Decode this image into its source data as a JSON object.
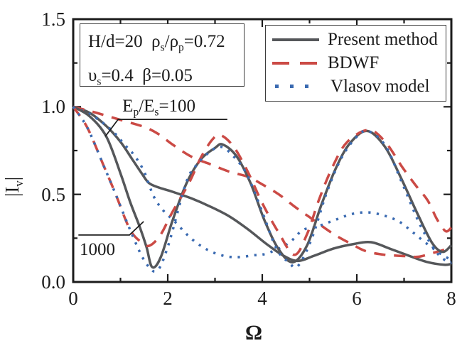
{
  "figure": {
    "background": "#ffffff",
    "axis_color": "#1b1b1b",
    "accent_gray": "#55575a",
    "accent_red": "#cb4a45",
    "accent_blue": "#3a6ab1"
  },
  "axes": {
    "xlabel": "Ω",
    "ylabel": "|I_{v}|",
    "xlim": [
      0,
      8
    ],
    "ylim": [
      0,
      1.5
    ],
    "x_major_ticks": [
      0,
      2,
      4,
      6,
      8
    ],
    "x_minor_ticks": [
      1,
      3,
      5,
      7
    ],
    "y_major_ticks": [
      0,
      0.5,
      1.0,
      1.5
    ],
    "y_minor_ticks": [
      0.25,
      0.75,
      1.25
    ],
    "x_tick_labels": [
      "0",
      "2",
      "4",
      "6",
      "8"
    ],
    "y_tick_labels": [
      "0.0",
      "0.5",
      "1.0",
      "1.5"
    ],
    "grid": "off",
    "ticks": "inward-all-sides"
  },
  "annotation_box": {
    "line1": "H/d=20  ρ_{s}/ρ_{p}=0.72",
    "line2": "υ_{s}=0.4  β=0.05"
  },
  "legend": {
    "position": "upper-right",
    "entries": [
      {
        "label": "Present method",
        "style": "solid",
        "color": "#55575a"
      },
      {
        "label": "BDWF",
        "style": "dashed",
        "color": "#cb4a45"
      },
      {
        "label": "Vlasov model",
        "style": "dotted",
        "color": "#3a6ab1"
      }
    ]
  },
  "curve_labels": [
    {
      "text": "E_{p}/E_{s}=100",
      "x": 1.04,
      "y_top": 1.058,
      "leader": [
        [
          3.26,
          0.928
        ],
        [
          0.95,
          0.928
        ],
        [
          0.68,
          0.831
        ]
      ]
    },
    {
      "text": "1000",
      "x": 0.135,
      "y_top": 0.239,
      "leader": [
        [
          0.11,
          0.268
        ],
        [
          1.19,
          0.268
        ],
        [
          1.49,
          0.345
        ]
      ]
    }
  ],
  "chart_data": {
    "type": "line",
    "title": "",
    "xlabel": "Ω",
    "ylabel": "|I_v|",
    "xlim": [
      0,
      8
    ],
    "ylim": [
      0,
      1.5
    ],
    "legend_position": "upper-right",
    "series": [
      {
        "name": "Present method (Ep/Es=100)",
        "method": "Present method",
        "ep_es": 100,
        "style": "solid",
        "color": "#55575a",
        "points": [
          [
            0,
            1.0
          ],
          [
            0.35,
            0.965
          ],
          [
            0.7,
            0.89
          ],
          [
            1.0,
            0.8
          ],
          [
            1.25,
            0.7
          ],
          [
            1.45,
            0.62
          ],
          [
            1.6,
            0.565
          ],
          [
            1.8,
            0.54
          ],
          [
            2.1,
            0.515
          ],
          [
            2.5,
            0.477
          ],
          [
            2.9,
            0.43
          ],
          [
            3.3,
            0.375
          ],
          [
            3.7,
            0.3
          ],
          [
            4.1,
            0.215
          ],
          [
            4.45,
            0.15
          ],
          [
            4.75,
            0.12
          ],
          [
            5.1,
            0.15
          ],
          [
            5.5,
            0.19
          ],
          [
            5.9,
            0.215
          ],
          [
            6.3,
            0.227
          ],
          [
            6.7,
            0.19
          ],
          [
            7.1,
            0.15
          ],
          [
            7.5,
            0.113
          ],
          [
            7.85,
            0.098
          ],
          [
            8,
            0.103
          ]
        ]
      },
      {
        "name": "Present method (Ep/Es=1000)",
        "method": "Present method",
        "ep_es": 1000,
        "style": "solid",
        "color": "#55575a",
        "points": [
          [
            0,
            1.0
          ],
          [
            0.35,
            0.945
          ],
          [
            0.7,
            0.83
          ],
          [
            1.0,
            0.62
          ],
          [
            1.2,
            0.46
          ],
          [
            1.4,
            0.32
          ],
          [
            1.55,
            0.2
          ],
          [
            1.67,
            0.085
          ],
          [
            1.85,
            0.14
          ],
          [
            2.1,
            0.35
          ],
          [
            2.4,
            0.565
          ],
          [
            2.7,
            0.7
          ],
          [
            3.0,
            0.765
          ],
          [
            3.16,
            0.785
          ],
          [
            3.45,
            0.72
          ],
          [
            3.75,
            0.565
          ],
          [
            4.05,
            0.35
          ],
          [
            4.35,
            0.185
          ],
          [
            4.65,
            0.113
          ],
          [
            4.95,
            0.21
          ],
          [
            5.25,
            0.44
          ],
          [
            5.55,
            0.645
          ],
          [
            5.85,
            0.79
          ],
          [
            6.22,
            0.862
          ],
          [
            6.6,
            0.77
          ],
          [
            6.95,
            0.585
          ],
          [
            7.3,
            0.38
          ],
          [
            7.6,
            0.22
          ],
          [
            7.82,
            0.172
          ],
          [
            8,
            0.21
          ]
        ]
      },
      {
        "name": "BDWF (Ep/Es=100)",
        "method": "BDWF",
        "ep_es": 100,
        "style": "dashed",
        "color": "#cb4a45",
        "points": [
          [
            0,
            1.0
          ],
          [
            0.5,
            0.965
          ],
          [
            1.0,
            0.925
          ],
          [
            1.5,
            0.885
          ],
          [
            1.8,
            0.845
          ],
          [
            2.1,
            0.785
          ],
          [
            2.5,
            0.715
          ],
          [
            2.9,
            0.672
          ],
          [
            3.3,
            0.63
          ],
          [
            3.7,
            0.6
          ],
          [
            4.0,
            0.557
          ],
          [
            4.35,
            0.5
          ],
          [
            4.7,
            0.427
          ],
          [
            5.0,
            0.37
          ],
          [
            5.5,
            0.275
          ],
          [
            5.9,
            0.215
          ],
          [
            6.2,
            0.175
          ],
          [
            6.6,
            0.155
          ],
          [
            7.0,
            0.148
          ],
          [
            7.3,
            0.144
          ],
          [
            7.6,
            0.165
          ],
          [
            8,
            0.195
          ]
        ]
      },
      {
        "name": "BDWF (Ep/Es=1000)",
        "method": "BDWF",
        "ep_es": 1000,
        "style": "dashed",
        "color": "#cb4a45",
        "points": [
          [
            0,
            1.0
          ],
          [
            0.3,
            0.88
          ],
          [
            0.65,
            0.66
          ],
          [
            0.9,
            0.5
          ],
          [
            1.2,
            0.3
          ],
          [
            1.45,
            0.225
          ],
          [
            1.62,
            0.208
          ],
          [
            1.85,
            0.27
          ],
          [
            2.1,
            0.4
          ],
          [
            2.45,
            0.565
          ],
          [
            2.7,
            0.71
          ],
          [
            2.95,
            0.815
          ],
          [
            3.12,
            0.838
          ],
          [
            3.4,
            0.77
          ],
          [
            3.7,
            0.625
          ],
          [
            4.0,
            0.45
          ],
          [
            4.35,
            0.28
          ],
          [
            4.68,
            0.155
          ],
          [
            4.95,
            0.275
          ],
          [
            5.2,
            0.47
          ],
          [
            5.5,
            0.665
          ],
          [
            5.8,
            0.8
          ],
          [
            6.25,
            0.868
          ],
          [
            6.6,
            0.8
          ],
          [
            6.95,
            0.66
          ],
          [
            7.25,
            0.55
          ],
          [
            7.5,
            0.465
          ],
          [
            7.7,
            0.356
          ],
          [
            7.88,
            0.29
          ],
          [
            8,
            0.31
          ]
        ]
      },
      {
        "name": "Vlasov model (Ep/Es=100)",
        "method": "Vlasov model",
        "ep_es": 100,
        "style": "dotted",
        "color": "#3a6ab1",
        "points": [
          [
            0,
            1.0
          ],
          [
            0.4,
            0.95
          ],
          [
            0.8,
            0.87
          ],
          [
            1.1,
            0.78
          ],
          [
            1.3,
            0.72
          ],
          [
            1.5,
            0.63
          ],
          [
            1.7,
            0.49
          ],
          [
            1.9,
            0.41
          ],
          [
            2.15,
            0.344
          ],
          [
            2.5,
            0.247
          ],
          [
            2.85,
            0.182
          ],
          [
            3.2,
            0.148
          ],
          [
            3.5,
            0.142
          ],
          [
            3.8,
            0.152
          ],
          [
            4.1,
            0.163
          ],
          [
            4.55,
            0.22
          ],
          [
            4.85,
            0.295
          ],
          [
            5.15,
            0.315
          ],
          [
            5.5,
            0.35
          ],
          [
            5.9,
            0.388
          ],
          [
            6.26,
            0.397
          ],
          [
            6.6,
            0.377
          ],
          [
            6.9,
            0.344
          ],
          [
            7.17,
            0.287
          ],
          [
            7.45,
            0.225
          ],
          [
            7.75,
            0.165
          ],
          [
            8,
            0.125
          ]
        ]
      },
      {
        "name": "Vlasov model (Ep/Es=1000)",
        "method": "Vlasov model",
        "ep_es": 1000,
        "style": "dotted",
        "color": "#3a6ab1",
        "points": [
          [
            0,
            1.0
          ],
          [
            0.3,
            0.88
          ],
          [
            0.65,
            0.66
          ],
          [
            0.9,
            0.5
          ],
          [
            1.2,
            0.3
          ],
          [
            1.5,
            0.125
          ],
          [
            1.76,
            0.062
          ],
          [
            2.0,
            0.2
          ],
          [
            2.38,
            0.56
          ],
          [
            2.6,
            0.665
          ],
          [
            2.9,
            0.745
          ],
          [
            3.15,
            0.77
          ],
          [
            3.45,
            0.7
          ],
          [
            3.7,
            0.6
          ],
          [
            4.0,
            0.4
          ],
          [
            4.3,
            0.19
          ],
          [
            4.55,
            0.115
          ],
          [
            4.75,
            0.09
          ],
          [
            5.05,
            0.25
          ],
          [
            5.35,
            0.5
          ],
          [
            5.65,
            0.695
          ],
          [
            5.95,
            0.815
          ],
          [
            6.22,
            0.862
          ],
          [
            6.6,
            0.78
          ],
          [
            6.95,
            0.57
          ],
          [
            7.35,
            0.32
          ],
          [
            7.7,
            0.165
          ],
          [
            7.95,
            0.112
          ],
          [
            8,
            0.115
          ]
        ]
      }
    ]
  }
}
